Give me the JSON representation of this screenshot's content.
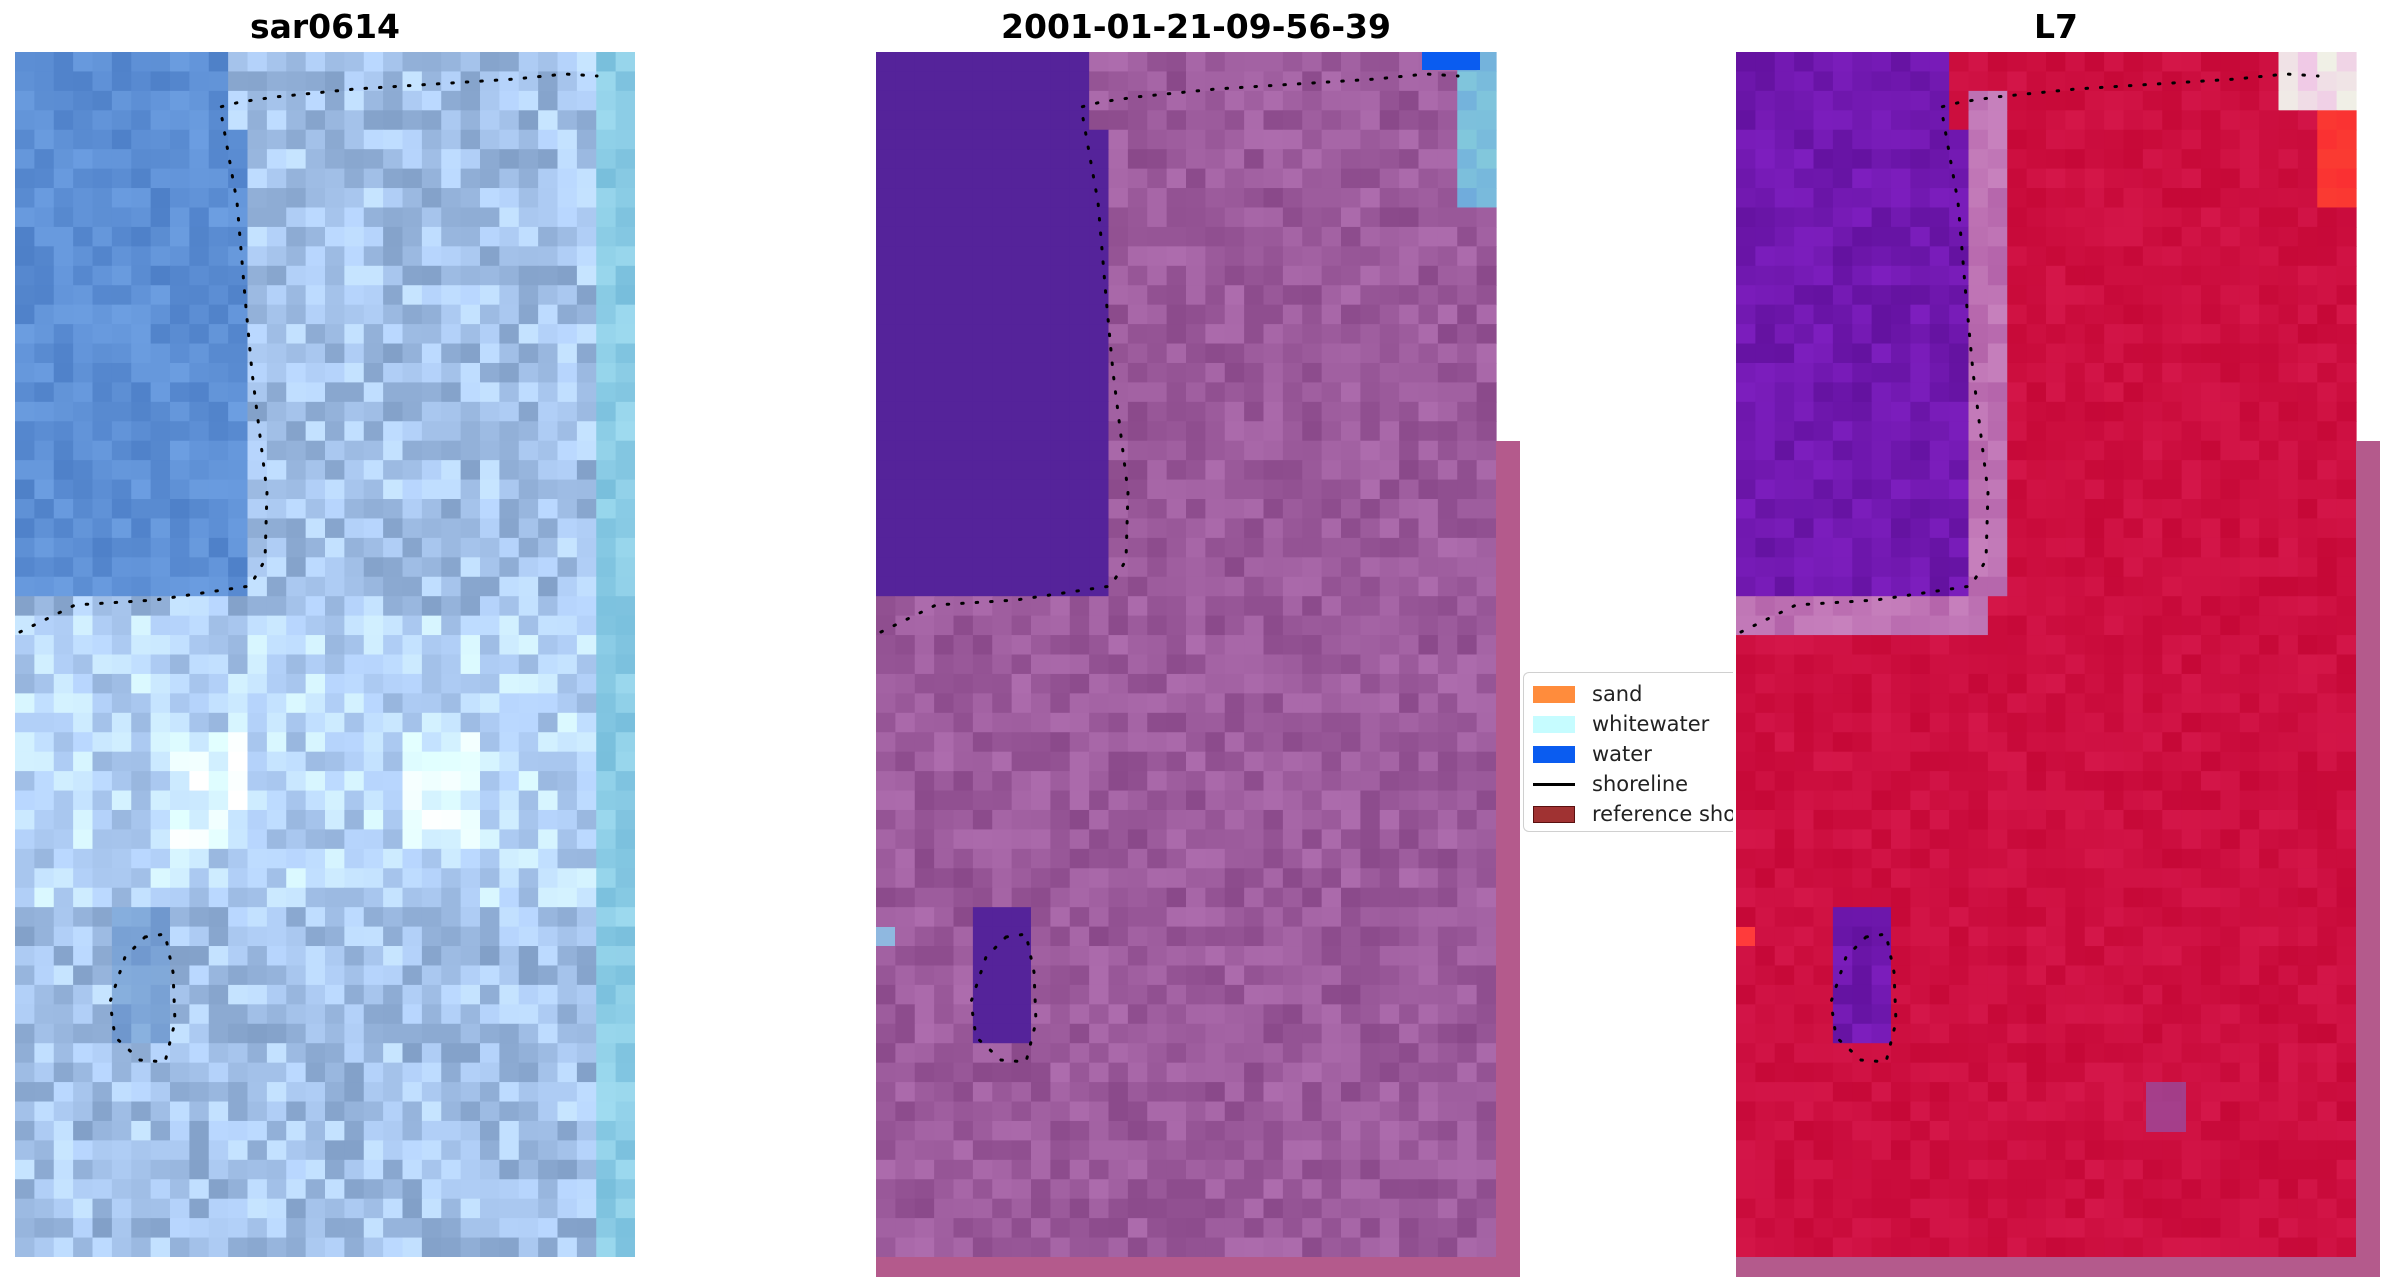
{
  "panels": [
    {
      "title": "sar0614",
      "palette": "rgb"
    },
    {
      "title": "2001-01-21-09-56-39",
      "palette": "classified"
    },
    {
      "title": "L7",
      "palette": "mndwi"
    }
  ],
  "legend": {
    "items": [
      {
        "label": "sand",
        "color": "#ff8c3c",
        "kind": "patch"
      },
      {
        "label": "whitewater",
        "color": "#c6fcff",
        "kind": "patch"
      },
      {
        "label": "water",
        "color": "#0a5cf0",
        "kind": "patch"
      },
      {
        "label": "shoreline",
        "color": "#000000",
        "kind": "line"
      },
      {
        "label": "reference shoreline",
        "color": "#a03232",
        "kind": "patch"
      }
    ]
  },
  "colors": {
    "sky_blue": "#5b8fcf",
    "classified_water_purple": "#55239a",
    "classified_land_mauve": "#94508c",
    "mndwi_red": "#c70a3a",
    "mndwi_purple": "#6a14a8",
    "reference_strip": "#b45a8c"
  }
}
